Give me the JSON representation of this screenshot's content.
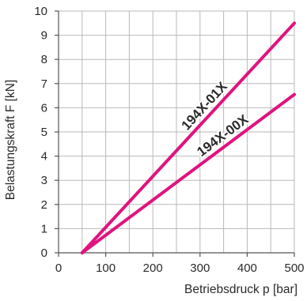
{
  "chart_data": {
    "type": "line",
    "xlabel": "Betriebsdruck p [bar]",
    "ylabel": "Belastungskraft F [kN]",
    "xlim": [
      0,
      500
    ],
    "ylim": [
      0,
      10
    ],
    "x_ticks": [
      0,
      100,
      200,
      300,
      400,
      500
    ],
    "y_ticks": [
      0,
      1,
      2,
      3,
      4,
      5,
      6,
      7,
      8,
      9,
      10
    ],
    "grid": true,
    "series": [
      {
        "name": "194X-01X",
        "x": [
          50,
          500
        ],
        "y": [
          0,
          9.5
        ]
      },
      {
        "name": "194X-00X",
        "x": [
          50,
          500
        ],
        "y": [
          0,
          6.55
        ]
      }
    ],
    "series_color": "#e0137f"
  }
}
